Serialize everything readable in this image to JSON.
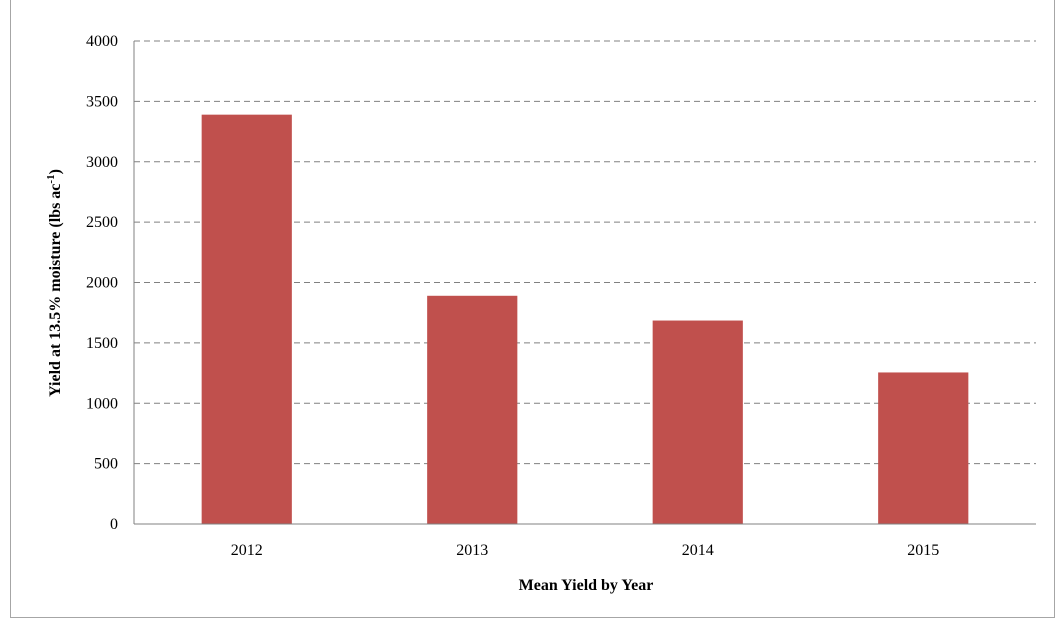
{
  "chart_data": {
    "type": "bar",
    "categories": [
      "2012",
      "2013",
      "2014",
      "2015"
    ],
    "series": [
      {
        "values": [
          3390,
          1890,
          1685,
          1255
        ]
      }
    ],
    "title": "",
    "xlabel": "Mean Yield by Year",
    "ylabel": "Yield at 13.5% moisture (lbs ac",
    "ylabel_superscript": "-1",
    "ylabel_suffix": ")",
    "ylim": [
      0,
      4000
    ],
    "yticks": [
      "0",
      "500",
      "1000",
      "1500",
      "2000",
      "2500",
      "3000",
      "3500",
      "4000"
    ],
    "grid": "dashed horizontal",
    "legend": "none",
    "bar_color": "#C0504D",
    "grid_color": "#808080"
  }
}
